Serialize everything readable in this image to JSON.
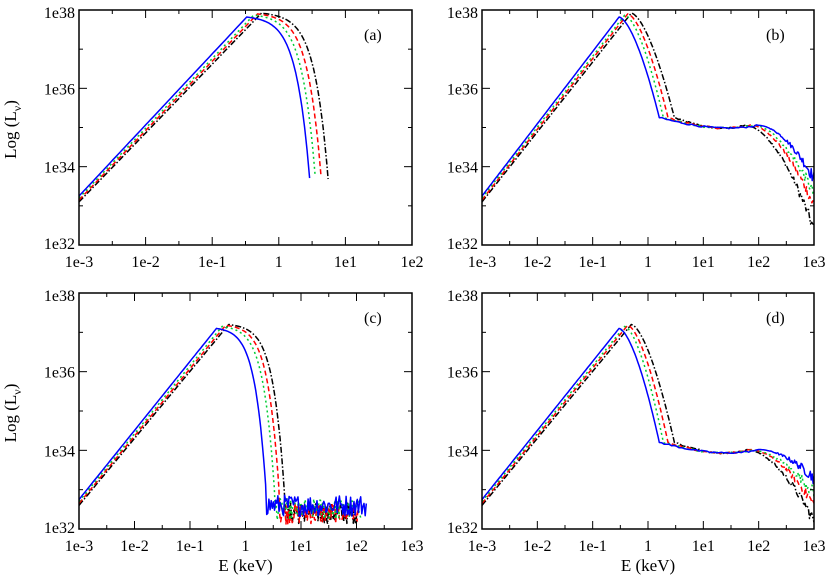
{
  "chart_data": [
    {
      "panel": "(a)",
      "type": "line",
      "x_scale": "log",
      "y_scale": "log",
      "xlim": [
        0.001,
        100
      ],
      "ylim": [
        1e+32,
        1e+38
      ],
      "x_ticks": [
        "1e-3",
        "1e-2",
        "1e-1",
        "1",
        "1e1",
        "1e2"
      ],
      "y_ticks": [
        "1e32",
        "1e34",
        "1e36",
        "1e38"
      ],
      "xlabel": "",
      "ylabel": "Log (L",
      "ylabel_sub": "ν",
      "ylabel_close": ")",
      "series": [
        {
          "name": "black dash-dot",
          "color": "#000000",
          "dash": "6,2,1.5,2",
          "peak_E": 0.55,
          "peak_logL": 37.92,
          "E_low": 0.001,
          "logL_low": 33.1,
          "cutoff_E": 5.5,
          "has_tail": false
        },
        {
          "name": "red dashed",
          "color": "#ff0000",
          "dash": "5,3",
          "peak_E": 0.48,
          "peak_logL": 37.9,
          "E_low": 0.001,
          "logL_low": 33.15,
          "cutoff_E": 4.3,
          "has_tail": false
        },
        {
          "name": "green dotted",
          "color": "#00cc33",
          "dash": "2,3",
          "peak_E": 0.42,
          "peak_logL": 37.87,
          "E_low": 0.001,
          "logL_low": 33.2,
          "cutoff_E": 3.5,
          "has_tail": false
        },
        {
          "name": "blue solid",
          "color": "#0000ff",
          "dash": "",
          "peak_E": 0.33,
          "peak_logL": 37.82,
          "E_low": 0.001,
          "logL_low": 33.25,
          "cutoff_E": 2.9,
          "has_tail": false
        }
      ]
    },
    {
      "panel": "(b)",
      "type": "line",
      "x_scale": "log",
      "y_scale": "log",
      "xlim": [
        0.001,
        1000
      ],
      "ylim": [
        1e+32,
        1e+38
      ],
      "x_ticks": [
        "1e-3",
        "1e-2",
        "1e-1",
        "1",
        "1e1",
        "1e2",
        "1e3"
      ],
      "y_ticks": [
        "1e32",
        "1e34",
        "1e36",
        "1e38"
      ],
      "xlabel": "",
      "ylabel": "",
      "series": [
        {
          "name": "black dash-dot",
          "color": "#000000",
          "dash": "6,2,1.5,2",
          "peak_E": 0.5,
          "peak_logL": 37.92,
          "E_low": 0.001,
          "logL_low": 33.1,
          "knee_E": 3.0,
          "plateau_logL": 35.0,
          "hump_E": 60,
          "end_logL": 32.4,
          "has_tail": true
        },
        {
          "name": "red dashed",
          "color": "#ff0000",
          "dash": "5,3",
          "peak_E": 0.43,
          "peak_logL": 37.9,
          "E_low": 0.001,
          "logL_low": 33.15,
          "knee_E": 2.3,
          "plateau_logL": 35.0,
          "hump_E": 70,
          "end_logL": 33.0,
          "has_tail": true
        },
        {
          "name": "green dotted",
          "color": "#00cc33",
          "dash": "2,3",
          "peak_E": 0.38,
          "peak_logL": 37.87,
          "E_low": 0.001,
          "logL_low": 33.2,
          "knee_E": 1.9,
          "plateau_logL": 35.0,
          "hump_E": 80,
          "end_logL": 33.3,
          "has_tail": true
        },
        {
          "name": "blue solid",
          "color": "#0000ff",
          "dash": "",
          "peak_E": 0.3,
          "peak_logL": 37.82,
          "E_low": 0.001,
          "logL_low": 33.25,
          "knee_E": 1.6,
          "plateau_logL": 35.0,
          "hump_E": 100,
          "end_logL": 33.7,
          "has_tail": true
        }
      ]
    },
    {
      "panel": "(c)",
      "type": "line",
      "x_scale": "log",
      "y_scale": "log",
      "xlim": [
        0.001,
        1000
      ],
      "ylim": [
        1e+32,
        1e+38
      ],
      "x_ticks": [
        "1e-3",
        "1e-2",
        "1e-1",
        "1",
        "1e1",
        "1e2",
        "1e3"
      ],
      "y_ticks": [
        "1e32",
        "1e34",
        "1e36",
        "1e38"
      ],
      "xlabel": "E (keV)",
      "ylabel": "Log (L",
      "ylabel_sub": "ν",
      "ylabel_close": ")",
      "series": [
        {
          "name": "black dash-dot",
          "color": "#000000",
          "dash": "6,2,1.5,2",
          "peak_E": 0.5,
          "peak_logL": 37.2,
          "E_low": 0.001,
          "logL_low": 32.6,
          "cutoff_E": 5.0,
          "noise_logL": 32.3,
          "noise_end_E": 100,
          "has_tail": false
        },
        {
          "name": "red dashed",
          "color": "#ff0000",
          "dash": "5,3",
          "peak_E": 0.44,
          "peak_logL": 37.18,
          "E_low": 0.001,
          "logL_low": 32.65,
          "cutoff_E": 4.0,
          "noise_logL": 32.3,
          "noise_end_E": 110,
          "has_tail": false
        },
        {
          "name": "green dotted",
          "color": "#00cc33",
          "dash": "2,3",
          "peak_E": 0.38,
          "peak_logL": 37.15,
          "E_low": 0.001,
          "logL_low": 32.7,
          "cutoff_E": 3.3,
          "noise_logL": 32.4,
          "noise_end_E": 120,
          "has_tail": false
        },
        {
          "name": "blue solid",
          "color": "#0000ff",
          "dash": "",
          "peak_E": 0.3,
          "peak_logL": 37.1,
          "E_low": 0.001,
          "logL_low": 32.75,
          "cutoff_E": 2.3,
          "noise_logL": 32.5,
          "noise_end_E": 150,
          "has_tail": false
        }
      ]
    },
    {
      "panel": "(d)",
      "type": "line",
      "x_scale": "log",
      "y_scale": "log",
      "xlim": [
        0.001,
        1000
      ],
      "ylim": [
        1e+32,
        1e+38
      ],
      "x_ticks": [
        "1e-3",
        "1e-2",
        "1e-1",
        "1",
        "1e1",
        "1e2",
        "1e3"
      ],
      "y_ticks": [
        "1e32",
        "1e34",
        "1e36",
        "1e38"
      ],
      "xlabel": "E (keV)",
      "ylabel": "",
      "series": [
        {
          "name": "black dash-dot",
          "color": "#000000",
          "dash": "6,2,1.5,2",
          "peak_E": 0.5,
          "peak_logL": 37.2,
          "E_low": 0.001,
          "logL_low": 32.6,
          "knee_E": 3.0,
          "plateau_logL": 33.95,
          "hump_E": 60,
          "end_logL": 32.2,
          "has_tail": true
        },
        {
          "name": "red dashed",
          "color": "#ff0000",
          "dash": "5,3",
          "peak_E": 0.43,
          "peak_logL": 37.18,
          "E_low": 0.001,
          "logL_low": 32.65,
          "knee_E": 2.3,
          "plateau_logL": 33.95,
          "hump_E": 70,
          "end_logL": 32.6,
          "has_tail": true
        },
        {
          "name": "green dotted",
          "color": "#00cc33",
          "dash": "2,3",
          "peak_E": 0.38,
          "peak_logL": 37.15,
          "E_low": 0.001,
          "logL_low": 32.7,
          "knee_E": 1.9,
          "plateau_logL": 33.95,
          "hump_E": 80,
          "end_logL": 32.9,
          "has_tail": true
        },
        {
          "name": "blue solid",
          "color": "#0000ff",
          "dash": "",
          "peak_E": 0.3,
          "peak_logL": 37.1,
          "E_low": 0.001,
          "logL_low": 32.75,
          "knee_E": 1.6,
          "plateau_logL": 33.95,
          "hump_E": 100,
          "end_logL": 33.3,
          "has_tail": true
        }
      ]
    }
  ]
}
